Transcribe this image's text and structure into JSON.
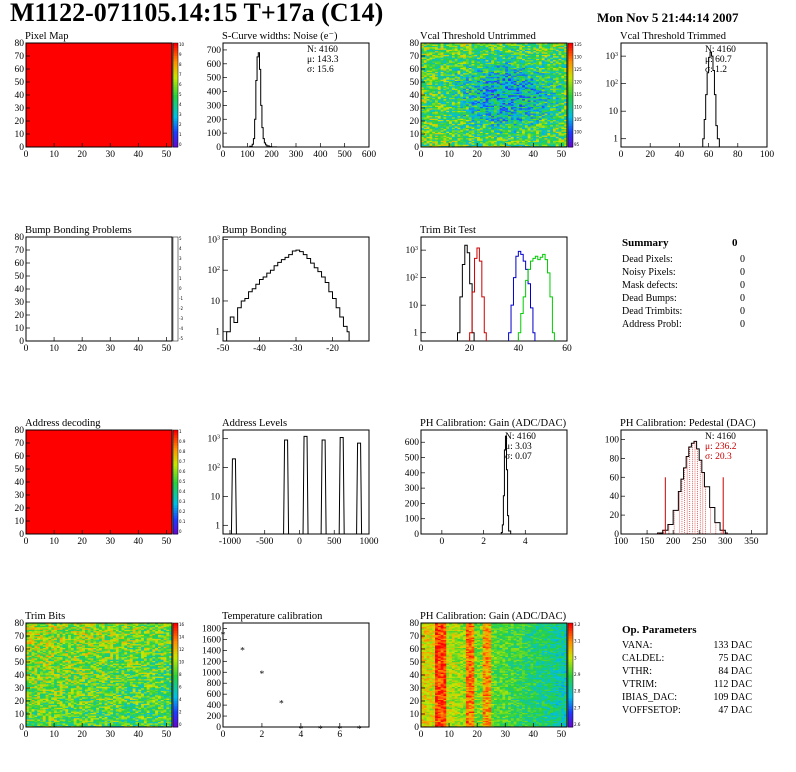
{
  "header": {
    "title": "M1122-071105.14:15 T+17a (C14)",
    "date": "Mon Nov  5 21:44:14 2007"
  },
  "colors": {
    "red": "#ff0000",
    "dark_red": "#c00000",
    "green": "#00cc00",
    "blue": "#0000cc",
    "black": "#000000"
  },
  "chart_data": [
    {
      "id": "pixel_map",
      "type": "heatmap",
      "title": "Pixel Map",
      "xlim": [
        0,
        52
      ],
      "ylim": [
        0,
        80
      ],
      "xticks": [
        0,
        10,
        20,
        30,
        40,
        50
      ],
      "yticks": [
        0,
        10,
        20,
        30,
        40,
        50,
        60,
        70,
        80
      ],
      "fill": "uniform",
      "uniform_color": "#ff0000",
      "palette_labels": [
        "10",
        "9",
        "8",
        "7",
        "6",
        "5",
        "4",
        "3",
        "2",
        "1",
        "0"
      ]
    },
    {
      "id": "scurve_widths",
      "type": "line",
      "title": "S-Curve widths: Noise (e⁻)",
      "xlim": [
        0,
        600
      ],
      "ylim": [
        0,
        750
      ],
      "xticks": [
        0,
        100,
        200,
        300,
        400,
        500,
        600
      ],
      "yticks": [
        0,
        100,
        200,
        300,
        400,
        500,
        600,
        700
      ],
      "log": false,
      "stats": [
        "N: 4160",
        "μ: 143.3",
        "σ: 15.6"
      ],
      "series": [
        {
          "x": [
            100,
            110,
            120,
            125,
            130,
            135,
            140,
            145,
            150,
            155,
            160,
            165,
            170,
            175,
            180,
            190,
            200,
            220
          ],
          "y": [
            0,
            5,
            20,
            60,
            200,
            480,
            650,
            680,
            560,
            300,
            140,
            60,
            30,
            15,
            8,
            3,
            1,
            0
          ]
        }
      ]
    },
    {
      "id": "vcal_untrimmed",
      "type": "heatmap",
      "title": "Vcal Threshold Untrimmed",
      "xlim": [
        0,
        52
      ],
      "ylim": [
        0,
        80
      ],
      "xticks": [
        0,
        10,
        20,
        30,
        40,
        50
      ],
      "yticks": [
        0,
        10,
        20,
        30,
        40,
        50,
        60,
        70,
        80
      ],
      "fill": "noise",
      "palette_labels": [
        "135",
        "130",
        "125",
        "120",
        "115",
        "110",
        "105",
        "100",
        "95"
      ]
    },
    {
      "id": "vcal_trimmed",
      "type": "line",
      "title": "Vcal Threshold Trimmed",
      "xlim": [
        0,
        100
      ],
      "ylim": [
        0.5,
        3000
      ],
      "xticks": [
        0,
        20,
        40,
        60,
        80,
        100
      ],
      "log": true,
      "stats": [
        "N: 4160",
        "μ: 60.7",
        "σ:  1.2"
      ],
      "series": [
        {
          "x": [
            56,
            57,
            58,
            59,
            60,
            61,
            62,
            63,
            64,
            65,
            66
          ],
          "y": [
            1,
            5,
            40,
            250,
            900,
            1400,
            1000,
            300,
            40,
            3,
            1
          ]
        }
      ]
    },
    {
      "id": "bump_problems",
      "type": "heatmap",
      "title": "Bump Bonding Problems",
      "xlim": [
        0,
        52
      ],
      "ylim": [
        0,
        80
      ],
      "xticks": [
        0,
        10,
        20,
        30,
        40,
        50
      ],
      "yticks": [
        0,
        10,
        20,
        30,
        40,
        50,
        60,
        70,
        80
      ],
      "fill": "empty",
      "palette_labels": [
        "5",
        "4",
        "3",
        "2",
        "1",
        "0",
        "-1",
        "-2",
        "-3",
        "-4",
        "-5"
      ]
    },
    {
      "id": "bump_bonding",
      "type": "line",
      "title": "Bump Bonding",
      "xlim": [
        -50,
        -10
      ],
      "ylim": [
        0.5,
        1200
      ],
      "xticks": [
        -50,
        -40,
        -30,
        -20
      ],
      "log": true,
      "series": [
        {
          "x": [
            -49,
            -48,
            -47,
            -46,
            -45,
            -44,
            -43,
            -42,
            -41,
            -40,
            -39,
            -38,
            -37,
            -36,
            -35,
            -34,
            -33,
            -32,
            -31,
            -30,
            -29,
            -28,
            -27,
            -26,
            -25,
            -24,
            -23,
            -22,
            -21,
            -20,
            -19,
            -18,
            -17,
            -16
          ],
          "y": [
            1,
            3,
            2,
            6,
            10,
            12,
            20,
            25,
            35,
            50,
            60,
            80,
            100,
            140,
            180,
            220,
            260,
            320,
            420,
            450,
            400,
            320,
            240,
            170,
            120,
            90,
            60,
            40,
            20,
            12,
            6,
            3,
            1.5,
            1
          ]
        }
      ]
    },
    {
      "id": "trim_bit_test",
      "type": "line",
      "title": "Trim Bit Test",
      "xlim": [
        0,
        60
      ],
      "ylim": [
        0.5,
        3000
      ],
      "xticks": [
        0,
        20,
        40,
        60
      ],
      "log": true,
      "series": [
        {
          "color": "#000000",
          "x": [
            15,
            16,
            17,
            18,
            19,
            20,
            21
          ],
          "y": [
            1,
            20,
            300,
            1500,
            800,
            60,
            1
          ]
        },
        {
          "color": "#cc0000",
          "x": [
            20,
            21,
            22,
            23,
            24,
            25,
            26
          ],
          "y": [
            1,
            30,
            500,
            1200,
            400,
            20,
            1
          ]
        },
        {
          "color": "#0000cc",
          "x": [
            36,
            37,
            38,
            39,
            40,
            41,
            42,
            43,
            44,
            45,
            46
          ],
          "y": [
            1,
            10,
            100,
            600,
            900,
            700,
            400,
            200,
            60,
            8,
            1
          ]
        },
        {
          "color": "#00cc00",
          "x": [
            40,
            41,
            42,
            43,
            44,
            45,
            46,
            47,
            48,
            49,
            50,
            51,
            52,
            53,
            54
          ],
          "y": [
            1,
            5,
            20,
            80,
            200,
            400,
            500,
            600,
            450,
            550,
            700,
            450,
            150,
            20,
            1
          ]
        }
      ]
    },
    {
      "id": "address_decoding",
      "type": "heatmap",
      "title": "Address decoding",
      "xlim": [
        0,
        52
      ],
      "ylim": [
        0,
        80
      ],
      "xticks": [
        0,
        10,
        20,
        30,
        40,
        50
      ],
      "yticks": [
        0,
        10,
        20,
        30,
        40,
        50,
        60,
        70,
        80
      ],
      "fill": "uniform",
      "uniform_color": "#ff0000",
      "palette_labels": [
        "1",
        "0.9",
        "0.8",
        "0.7",
        "0.6",
        "0.5",
        "0.4",
        "0.3",
        "0.2",
        "0.1",
        "0"
      ]
    },
    {
      "id": "address_levels",
      "type": "line",
      "title": "Address Levels",
      "xlim": [
        -1100,
        1000
      ],
      "ylim": [
        0.5,
        2000
      ],
      "xticks": [
        -1000,
        -500,
        0,
        500,
        1000
      ],
      "log": true,
      "spikes": [
        [
          -950,
          200
        ],
        [
          -200,
          900
        ],
        [
          80,
          1200
        ],
        [
          340,
          900
        ],
        [
          600,
          1100
        ],
        [
          850,
          700
        ]
      ]
    },
    {
      "id": "ph_gain",
      "type": "line",
      "title": "PH Calibration: Gain (ADC/DAC)",
      "xlim": [
        -1,
        6
      ],
      "ylim": [
        0,
        680
      ],
      "xticks": [
        0,
        2,
        4
      ],
      "yticks": [
        0,
        100,
        200,
        300,
        400,
        500,
        600
      ],
      "log": false,
      "stats": [
        "N: 4160",
        "μ: 3.03",
        "σ: 0.07"
      ],
      "series": [
        {
          "x": [
            2.75,
            2.85,
            2.9,
            2.95,
            3.0,
            3.05,
            3.1,
            3.15,
            3.2,
            3.3
          ],
          "y": [
            0,
            10,
            60,
            250,
            550,
            640,
            420,
            120,
            20,
            0
          ]
        }
      ]
    },
    {
      "id": "ph_pedestal",
      "type": "line",
      "title": "PH Calibration: Pedestal (DAC)",
      "xlim": [
        100,
        380
      ],
      "ylim": [
        0,
        110
      ],
      "xticks": [
        100,
        150,
        200,
        250,
        300,
        350
      ],
      "yticks": [
        0,
        20,
        40,
        60,
        80,
        100
      ],
      "log": false,
      "stats": [
        "N: 4160",
        "μ: 236.2",
        "σ: 20.3"
      ],
      "series": [
        {
          "x": [
            170,
            180,
            190,
            200,
            210,
            215,
            220,
            225,
            230,
            235,
            240,
            245,
            250,
            255,
            260,
            270,
            280,
            290,
            300
          ],
          "y": [
            1,
            4,
            10,
            25,
            45,
            58,
            70,
            82,
            92,
            96,
            98,
            90,
            78,
            65,
            50,
            28,
            12,
            4,
            1
          ]
        }
      ],
      "markers": [
        185,
        296
      ]
    },
    {
      "id": "trim_bits",
      "type": "heatmap",
      "title": "Trim Bits",
      "xlim": [
        0,
        52
      ],
      "ylim": [
        0,
        80
      ],
      "xticks": [
        0,
        10,
        20,
        30,
        40,
        50
      ],
      "yticks": [
        0,
        10,
        20,
        30,
        40,
        50,
        60,
        70,
        80
      ],
      "fill": "trim",
      "palette_labels": [
        "16",
        "14",
        "12",
        "10",
        "8",
        "6",
        "4",
        "2",
        "0"
      ]
    },
    {
      "id": "temperature_calibration",
      "type": "scatter",
      "title": "Temperature calibration",
      "xlim": [
        0,
        7.5
      ],
      "ylim": [
        0,
        1900
      ],
      "xticks": [
        0,
        2,
        4,
        6
      ],
      "yticks": [
        0,
        200,
        400,
        600,
        800,
        1000,
        1200,
        1400,
        1600,
        1800
      ],
      "series": [
        {
          "x": [
            0,
            1,
            2,
            3,
            4,
            5,
            6,
            7
          ],
          "y": [
            1750,
            1470,
            1040,
            500,
            40,
            40,
            40,
            40
          ]
        }
      ]
    },
    {
      "id": "ph_gain_map",
      "type": "heatmap",
      "title": "PH Calibration: Gain (ADC/DAC)",
      "xlim": [
        0,
        52
      ],
      "ylim": [
        0,
        80
      ],
      "xticks": [
        0,
        10,
        20,
        30,
        40,
        50
      ],
      "yticks": [
        0,
        10,
        20,
        30,
        40,
        50,
        60,
        70,
        80
      ],
      "fill": "gain",
      "palette_labels": [
        "3.2",
        "3.1",
        "3",
        "2.9",
        "2.8",
        "2.7",
        "2.6"
      ]
    }
  ],
  "summary": {
    "title": "Summary",
    "title_value": "0",
    "rows": [
      {
        "label": "Dead Pixels:",
        "value": "0"
      },
      {
        "label": "Noisy Pixels:",
        "value": "0"
      },
      {
        "label": "Mask defects:",
        "value": "0"
      },
      {
        "label": "Dead Bumps:",
        "value": "0"
      },
      {
        "label": "Dead Trimbits:",
        "value": "0"
      },
      {
        "label": "Address Probl:",
        "value": "0"
      }
    ]
  },
  "op_parameters": {
    "title": "Op. Parameters",
    "rows": [
      {
        "label": "VANA:",
        "value": "133 DAC"
      },
      {
        "label": "CALDEL:",
        "value": "75 DAC"
      },
      {
        "label": "VTHR:",
        "value": "84 DAC"
      },
      {
        "label": "VTRIM:",
        "value": "112 DAC"
      },
      {
        "label": "IBIAS_DAC:",
        "value": "109 DAC"
      },
      {
        "label": "VOFFSETOP:",
        "value": "47 DAC"
      }
    ]
  }
}
